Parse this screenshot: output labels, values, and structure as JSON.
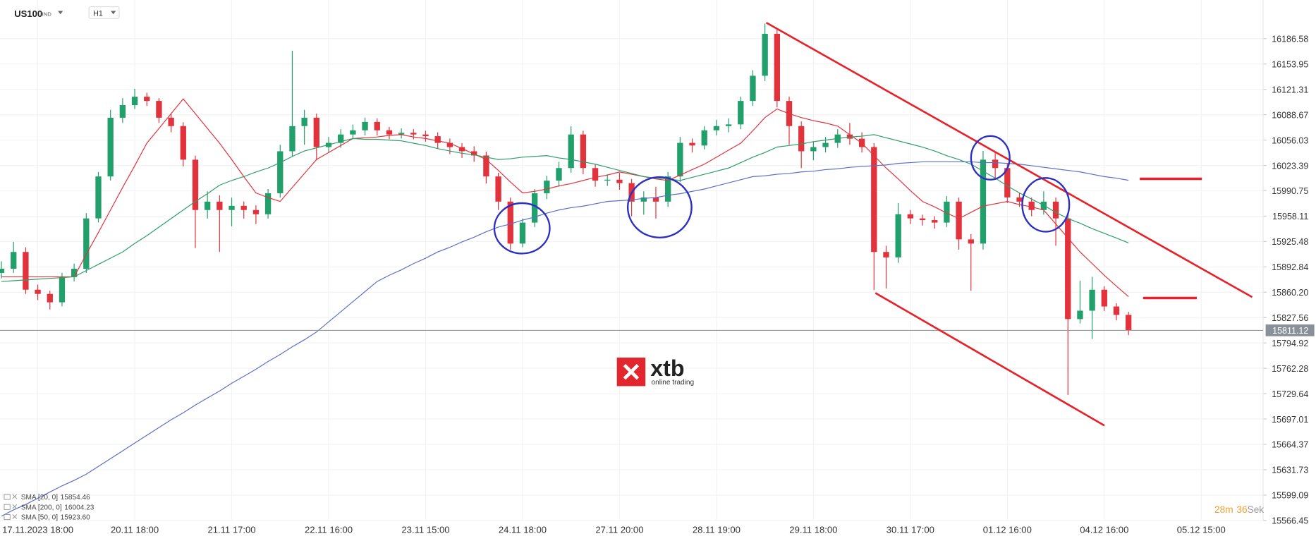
{
  "header": {
    "symbol": "US100",
    "symbol_type": "IND",
    "timeframe": "H1"
  },
  "logo": {
    "name": "xtb",
    "tagline": "online trading"
  },
  "timer": {
    "minutes": 28,
    "minutes_unit": "m",
    "seconds": 36,
    "seconds_unit": "Sek"
  },
  "chart_data": {
    "type": "candlestick",
    "ylim": [
      15566.45,
      16236.3
    ],
    "yticks": [
      15566.45,
      15599.09,
      15631.73,
      15664.37,
      15697.01,
      15729.64,
      15762.28,
      15794.92,
      15827.56,
      {
        "value": 15860.2,
        "label": "15860.20"
      },
      15892.84,
      15925.48,
      15958.11,
      15990.75,
      16023.39,
      16056.03,
      16088.67,
      16121.31,
      16153.95,
      16186.58
    ],
    "grid": true,
    "up_color": "#22a06b",
    "down_color": "#e2323c",
    "last_price": 15811.12,
    "categories": [
      null,
      null,
      null,
      "17.11.2023 18:00",
      null,
      null,
      null,
      null,
      null,
      null,
      null,
      "20.11 18:00",
      null,
      null,
      null,
      null,
      null,
      null,
      null,
      "21.11 17:00",
      null,
      null,
      null,
      null,
      null,
      null,
      null,
      "22.11 16:00",
      null,
      null,
      null,
      null,
      null,
      null,
      null,
      "23.11 15:00",
      null,
      null,
      null,
      null,
      null,
      null,
      null,
      "24.11 18:00",
      null,
      null,
      null,
      null,
      null,
      null,
      null,
      "27.11 20:00",
      null,
      null,
      null,
      null,
      null,
      null,
      null,
      "28.11 19:00",
      null,
      null,
      null,
      null,
      null,
      null,
      null,
      "29.11 18:00",
      null,
      null,
      null,
      null,
      null,
      null,
      null,
      "30.11 17:00",
      null,
      null,
      null,
      null,
      null,
      null,
      null,
      "01.12 16:00",
      null,
      null,
      null,
      null,
      null,
      null,
      null,
      "04.12 16:00",
      null,
      null,
      null,
      null,
      null,
      null,
      null,
      "05.12 15:00"
    ],
    "ohlc": [
      [
        15885,
        15900,
        15878,
        15890.4
      ],
      [
        15890.4,
        15925,
        15885,
        15912
      ],
      [
        15912,
        15918,
        15858,
        15863.4
      ],
      [
        15863.4,
        15870,
        15850,
        15858
      ],
      [
        15858,
        15862,
        15838,
        15847.2
      ],
      [
        15847.2,
        15885,
        15842,
        15879.6
      ],
      [
        15879.6,
        15897,
        15874,
        15890.4
      ],
      [
        15890.4,
        15962,
        15885,
        15955.2
      ],
      [
        15955.2,
        16015,
        15950,
        16009.2
      ],
      [
        16009.2,
        16095,
        16004,
        16084.8
      ],
      [
        16084.8,
        16110,
        16078,
        16101
      ],
      [
        16101,
        16122,
        16096,
        16111.8
      ],
      [
        16111.8,
        16117,
        16100,
        16106.4
      ],
      [
        16106.4,
        16110,
        16078,
        16084.8
      ],
      [
        16084.8,
        16090,
        16066,
        16074
      ],
      [
        16074,
        16079,
        16022,
        16030.8
      ],
      [
        16030.8,
        16036,
        15917,
        15966
      ],
      [
        15966,
        15990,
        15955,
        15976.8
      ],
      [
        15976.8,
        15985,
        15912,
        15966
      ],
      [
        15966,
        15982,
        15945,
        15971.4
      ],
      [
        15971.4,
        15977,
        15955,
        15966
      ],
      [
        15966,
        15972,
        15948,
        15960.6
      ],
      [
        15960.6,
        15993,
        15955,
        15987.6
      ],
      [
        15987.6,
        16050,
        15982,
        16041.6
      ],
      [
        16041.6,
        16171,
        16035,
        16074
      ],
      [
        16074,
        16095,
        16050,
        16084.8
      ],
      [
        16084.8,
        16090,
        16030,
        16047
      ],
      [
        16047,
        16060,
        16040,
        16052.4
      ],
      [
        16052.4,
        16070,
        16046,
        16063.2
      ],
      [
        16063.2,
        16076,
        16057,
        16068.6
      ],
      [
        16068.6,
        16085,
        16062,
        16079.4
      ],
      [
        16079.4,
        16084,
        16062,
        16068.6
      ],
      [
        16068.6,
        16073,
        16057,
        16063.2
      ],
      [
        16063.2,
        16071,
        16058,
        16065.4
      ],
      [
        16065.4,
        16070,
        16057,
        16063.2
      ],
      [
        16063.2,
        16068,
        16054,
        16061
      ],
      [
        16061,
        16066,
        16045,
        16052.4
      ],
      [
        16052.4,
        16058,
        16038,
        16047
      ],
      [
        16047,
        16052,
        16033,
        16041.6
      ],
      [
        16041.6,
        16048,
        16028,
        16036.2
      ],
      [
        16036.2,
        16041,
        16000,
        16009.2
      ],
      [
        16009.2,
        16014,
        15966,
        15976.8
      ],
      [
        15976.8,
        15982,
        15915,
        15922.8
      ],
      [
        15922.8,
        15955,
        15918,
        15949.8
      ],
      [
        15949.8,
        15993,
        15944,
        15987.6
      ],
      [
        15987.6,
        16010,
        15980,
        16003.8
      ],
      [
        16003.8,
        16028,
        15996,
        16020
      ],
      [
        16020,
        16074,
        16014,
        16063.2
      ],
      [
        16063.2,
        16068,
        16012,
        16020
      ],
      [
        16020,
        16025,
        15996,
        16003.8
      ],
      [
        16003.8,
        16012,
        15997,
        16005
      ],
      [
        16005,
        16014,
        15992,
        16000.6
      ],
      [
        16000.6,
        16006,
        15958,
        15976.8
      ],
      [
        15976.8,
        15990,
        15960,
        15982.2
      ],
      [
        15982.2,
        15996,
        15955,
        15976.8
      ],
      [
        15976.8,
        16015,
        15970,
        16009.2
      ],
      [
        16009.2,
        16060,
        16002,
        16052.4
      ],
      [
        16052.4,
        16058,
        16040,
        16049
      ],
      [
        16049,
        16074,
        16044,
        16068.6
      ],
      [
        16068.6,
        16082,
        16062,
        16074
      ],
      [
        16074,
        16084,
        16066,
        16076.2
      ],
      [
        16076.2,
        16112,
        16070,
        16106.4
      ],
      [
        16106.4,
        16146,
        16100,
        16138.8
      ],
      [
        16138.8,
        16206,
        16132,
        16192.8
      ],
      [
        16192.8,
        16198,
        16098,
        16106.4
      ],
      [
        16106.4,
        16112,
        16050,
        16074
      ],
      [
        16074,
        16080,
        16020,
        16041.6
      ],
      [
        16041.6,
        16054,
        16030,
        16047
      ],
      [
        16047,
        16060,
        16040,
        16052.4
      ],
      [
        16052.4,
        16070,
        16046,
        16063.2
      ],
      [
        16063.2,
        16078,
        16050,
        16057.8
      ],
      [
        16057.8,
        16066,
        16040,
        16047
      ],
      [
        16047,
        16052,
        15863,
        15912
      ],
      [
        15912,
        15920,
        15865,
        15905
      ],
      [
        15905,
        15975,
        15898,
        15960.6
      ],
      [
        15960.6,
        15966,
        15948,
        15955.2
      ],
      [
        15955.2,
        15960,
        15946,
        15953
      ],
      [
        15953,
        15958,
        15942,
        15949.8
      ],
      [
        15949.8,
        15984,
        15944,
        15976.8
      ],
      [
        15976.8,
        15982,
        15915,
        15928.2
      ],
      [
        15928.2,
        15935,
        15862,
        15922.8
      ],
      [
        15922.8,
        16042,
        15915,
        16030.8
      ],
      [
        16030.8,
        16040,
        16005,
        16020
      ],
      [
        16020,
        16026,
        15975,
        15982.2
      ],
      [
        15982.2,
        15988,
        15970,
        15976.8
      ],
      [
        15976.8,
        15982,
        15958,
        15966
      ],
      [
        15966,
        15990,
        15960,
        15976.8
      ],
      [
        15976.8,
        15982,
        15920,
        15955.2
      ],
      [
        15955.2,
        15960,
        15728,
        15825.6
      ],
      [
        15825.6,
        15875,
        15820,
        15836.4
      ],
      [
        15836.4,
        15880,
        15800,
        15863.4
      ],
      [
        15863.4,
        15868,
        15836,
        15841.8
      ],
      [
        15841.8,
        15846,
        15824,
        15831
      ],
      [
        15831,
        15835,
        15805,
        15811.12
      ],
      null,
      null,
      null,
      null,
      null,
      null
    ],
    "series": [
      {
        "name": "SMA [20, 0]",
        "color": "#e2323c",
        "legend_value": 15854.46,
        "values": [
          15880,
          15880,
          15880,
          15880,
          15880,
          15880,
          15880,
          15909,
          15937,
          15966,
          15995,
          16023,
          16052,
          16071,
          16090,
          16109,
          16090,
          16071,
          16052,
          16031,
          16009,
          15988,
          15982,
          15977,
          15995,
          16013,
          16031,
          16040,
          16049,
          16058,
          16059,
          16060,
          16062,
          16063,
          16060,
          16058,
          16055,
          16052,
          16045,
          16038,
          16031,
          16017,
          16002,
          15988,
          15990,
          15993,
          15997,
          16000,
          16004,
          16008,
          16011,
          16015,
          16012,
          16009,
          16006,
          16004,
          16011,
          16018,
          16025,
          16034,
          16043,
          16052,
          16068,
          16085,
          16096,
          16090,
          16085,
          16081,
          16078,
          16074,
          16063,
          16052,
          16036,
          16020,
          16006,
          15991,
          15977,
          15970,
          15962,
          15955,
          15963,
          15971,
          15974,
          15977,
          15973,
          15970,
          15966,
          15948,
          15930,
          15912,
          15897,
          15882,
          15868,
          15854.46,
          null,
          null,
          null,
          null,
          null,
          null
        ]
      },
      {
        "name": "SMA [200, 0]",
        "color": "#5b6fc9",
        "legend_value": 16004.23,
        "values": [
          15572,
          15580,
          15587,
          15595,
          15603,
          15611,
          15618,
          15626,
          15636,
          15646,
          15656,
          15666,
          15676,
          15686,
          15696,
          15705,
          15715,
          15724,
          15733,
          15743,
          15752,
          15761,
          15771,
          15780,
          15790,
          15799,
          15809,
          15822,
          15835,
          15848,
          15861,
          15874,
          15882,
          15889,
          15897,
          15904,
          15912,
          15918,
          15925,
          15931,
          15938,
          15944,
          15948,
          15953,
          15957,
          15962,
          15966,
          15969,
          15971,
          15974,
          15977,
          15978,
          15979,
          15981,
          15982,
          15985,
          15987,
          15990,
          15993,
          15997,
          16001,
          16005,
          16009,
          16010,
          16012,
          16013,
          16015,
          16016,
          16018,
          16019,
          16021,
          16022,
          16023,
          16024,
          16026,
          16027,
          16028,
          16028,
          16028,
          16028,
          16028,
          16027,
          16027,
          16026,
          16025,
          16023,
          16021,
          16019,
          16017,
          16015,
          16012,
          16009,
          16007,
          16004.23,
          null,
          null,
          null,
          null,
          null,
          null
        ]
      },
      {
        "name": "SMA [50, 0]",
        "color": "#2e9d6a",
        "legend_value": {
          "value": 15923.6,
          "label": "15923.60"
        },
        "values": [
          15874,
          15875,
          15876,
          15877,
          15878,
          15879,
          15880,
          15888,
          15896,
          15904,
          15912,
          15923,
          15933,
          15944,
          15955,
          15966,
          15977,
          15987,
          15998,
          16004,
          16009,
          16015,
          16020,
          16027,
          16035,
          16042,
          16046,
          16050,
          16054,
          16058,
          16057,
          16057,
          16056,
          16055,
          16052,
          16049,
          16045,
          16042,
          16039,
          16037,
          16034,
          16031,
          16032,
          16034,
          16035,
          16036,
          16033,
          16031,
          16028,
          16025,
          16021,
          16017,
          16013,
          16009,
          16007,
          16006,
          16004,
          16008,
          16012,
          16016,
          16020,
          16027,
          16034,
          16040,
          16047,
          16049,
          16051,
          16054,
          16056,
          16058,
          16060,
          16061,
          16063,
          16059,
          16055,
          16051,
          16047,
          16042,
          16036,
          16031,
          16025,
          16016,
          16007,
          15997,
          15988,
          15980,
          15972,
          15963,
          15955,
          15949,
          15942,
          15936,
          15930,
          15923.6,
          null,
          null,
          null,
          null,
          null,
          null
        ]
      }
    ]
  }
}
